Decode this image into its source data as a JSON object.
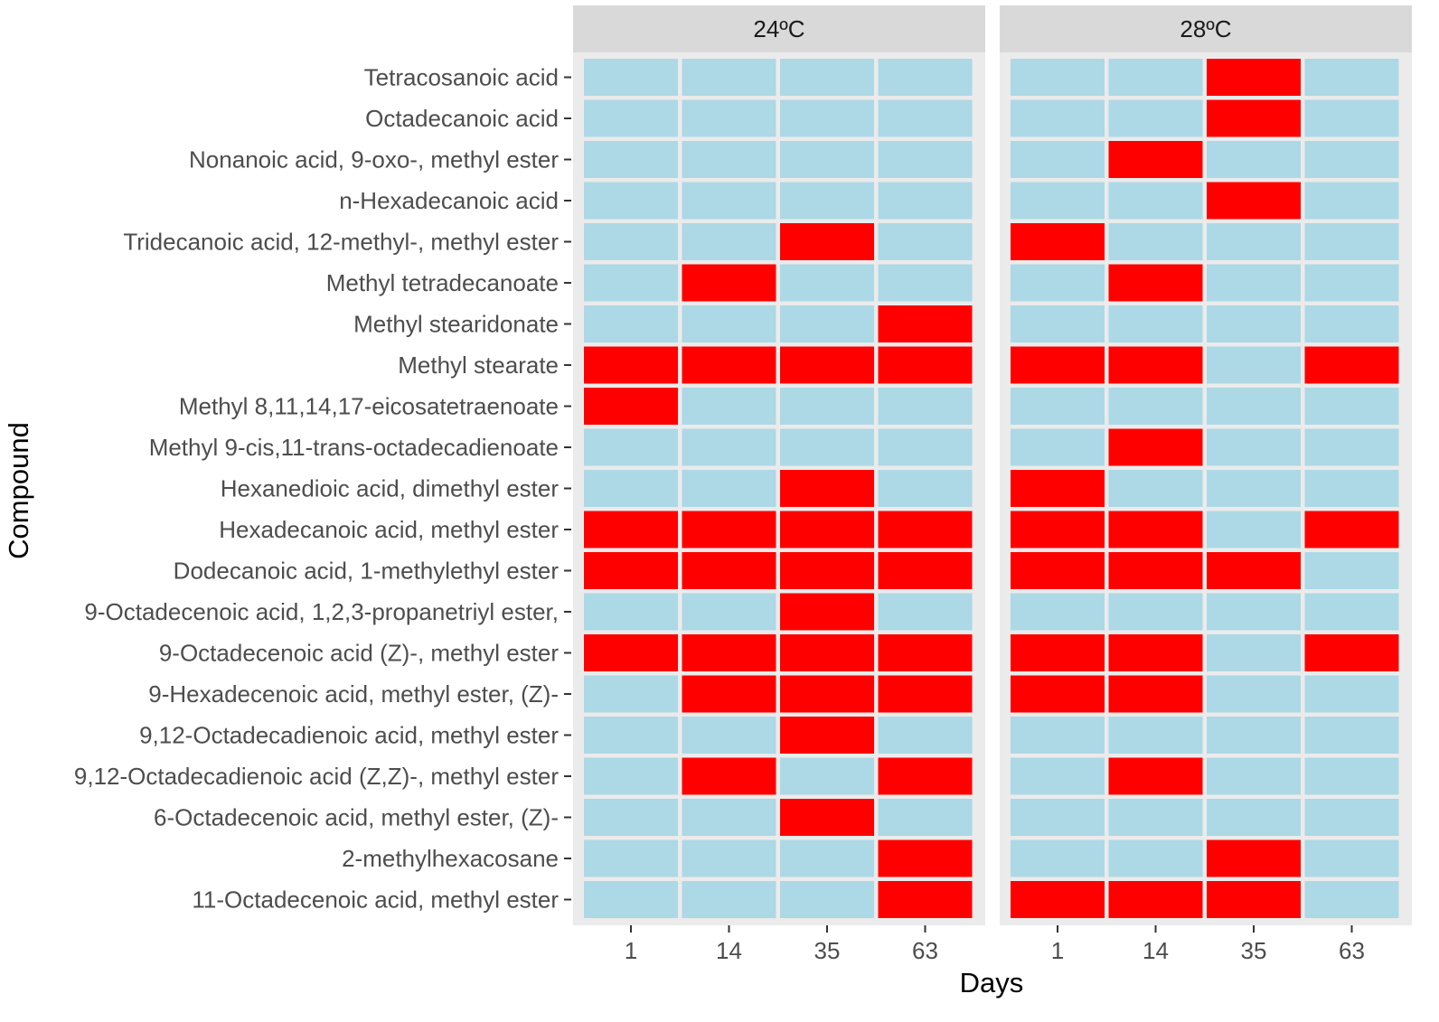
{
  "chart_data": {
    "type": "heatmap",
    "xlabel": "Days",
    "ylabel": "Compound",
    "x": [
      "1",
      "14",
      "35",
      "63"
    ],
    "compounds": [
      "Tetracosanoic acid",
      "Octadecanoic acid",
      "Nonanoic acid, 9-oxo-, methyl ester",
      "n-Hexadecanoic acid",
      "Tridecanoic acid, 12-methyl-, methyl ester",
      "Methyl tetradecanoate",
      "Methyl stearidonate",
      "Methyl stearate",
      "Methyl 8,11,14,17-eicosatetraenoate",
      "Methyl 9-cis,11-trans-octadecadienoate",
      "Hexanedioic acid, dimethyl ester",
      "Hexadecanoic acid, methyl ester",
      "Dodecanoic acid, 1-methylethyl ester",
      "9-Octadecenoic acid, 1,2,3-propanetriyl ester,",
      "9-Octadecenoic acid (Z)-, methyl ester",
      "9-Hexadecenoic acid, methyl ester, (Z)-",
      "9,12-Octadecadienoic acid, methyl ester",
      "9,12-Octadecadienoic acid (Z,Z)-, methyl ester",
      "6-Octadecenoic acid, methyl ester, (Z)-",
      "2-methylhexacosane",
      "11-Octadecenoic acid, methyl ester"
    ],
    "panels": [
      {
        "name": "24ºC",
        "presence": [
          [
            0,
            0,
            0,
            0
          ],
          [
            0,
            0,
            0,
            0
          ],
          [
            0,
            0,
            0,
            0
          ],
          [
            0,
            0,
            0,
            0
          ],
          [
            0,
            0,
            1,
            0
          ],
          [
            0,
            1,
            0,
            0
          ],
          [
            0,
            0,
            0,
            1
          ],
          [
            1,
            1,
            1,
            1
          ],
          [
            1,
            0,
            0,
            0
          ],
          [
            0,
            0,
            0,
            0
          ],
          [
            0,
            0,
            1,
            0
          ],
          [
            1,
            1,
            1,
            1
          ],
          [
            1,
            1,
            1,
            1
          ],
          [
            0,
            0,
            1,
            0
          ],
          [
            1,
            1,
            1,
            1
          ],
          [
            0,
            1,
            1,
            1
          ],
          [
            0,
            0,
            1,
            0
          ],
          [
            0,
            1,
            0,
            1
          ],
          [
            0,
            0,
            1,
            0
          ],
          [
            0,
            0,
            0,
            1
          ],
          [
            0,
            0,
            0,
            1
          ]
        ]
      },
      {
        "name": "28ºC",
        "presence": [
          [
            0,
            0,
            1,
            0
          ],
          [
            0,
            0,
            1,
            0
          ],
          [
            0,
            1,
            0,
            0
          ],
          [
            0,
            0,
            1,
            0
          ],
          [
            1,
            0,
            0,
            0
          ],
          [
            0,
            1,
            0,
            0
          ],
          [
            0,
            0,
            0,
            0
          ],
          [
            1,
            1,
            0,
            1
          ],
          [
            0,
            0,
            0,
            0
          ],
          [
            0,
            1,
            0,
            0
          ],
          [
            1,
            0,
            0,
            0
          ],
          [
            1,
            1,
            0,
            1
          ],
          [
            1,
            1,
            1,
            0
          ],
          [
            0,
            0,
            0,
            0
          ],
          [
            1,
            1,
            0,
            1
          ],
          [
            1,
            1,
            0,
            0
          ],
          [
            0,
            0,
            0,
            0
          ],
          [
            0,
            1,
            0,
            0
          ],
          [
            0,
            0,
            0,
            0
          ],
          [
            0,
            0,
            1,
            0
          ],
          [
            1,
            1,
            1,
            0
          ]
        ]
      }
    ],
    "colors": {
      "present": "#ff0000",
      "absent": "#add8e6",
      "strip": "#d9d9d9",
      "panel_background": "#ebebeb",
      "cell_border": "#ffffff",
      "tick": "#333333"
    },
    "grid": false,
    "legend": "none"
  }
}
